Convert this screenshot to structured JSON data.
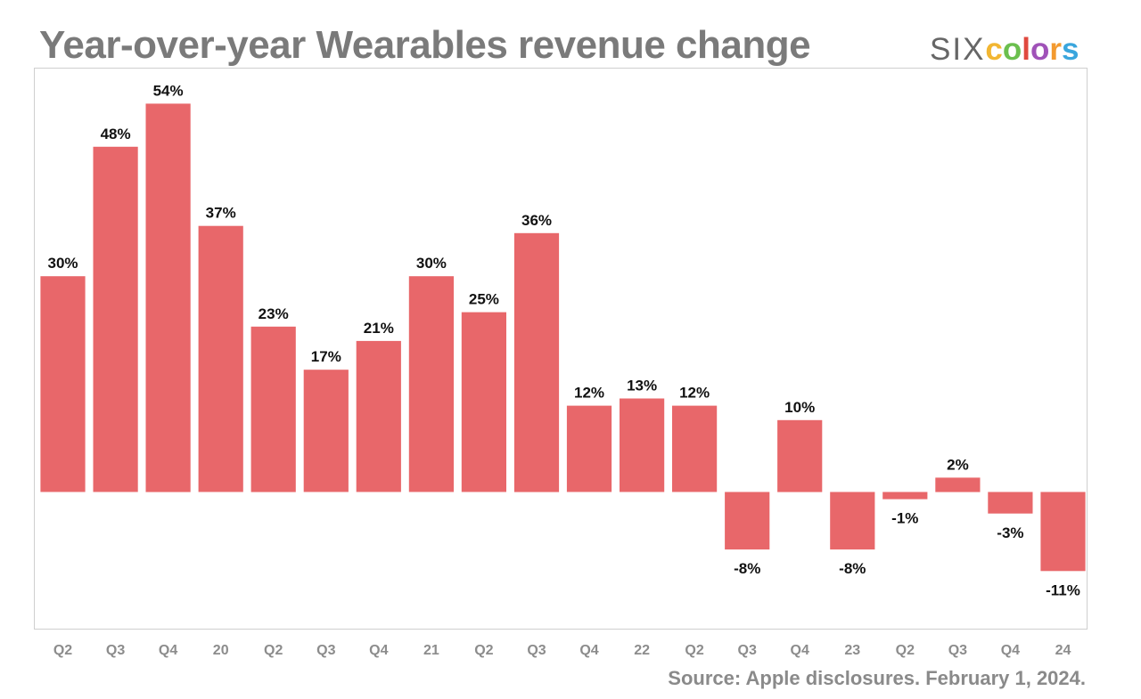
{
  "header": {
    "title": "Year-over-year Wearables revenue change",
    "logo": {
      "six": "SIX",
      "colors": [
        {
          "ch": "c",
          "color": "#f2b632"
        },
        {
          "ch": "o",
          "color": "#6bbf4e"
        },
        {
          "ch": "l",
          "color": "#e0493f"
        },
        {
          "ch": "o",
          "color": "#a052b8"
        },
        {
          "ch": "r",
          "color": "#f39a2f"
        },
        {
          "ch": "s",
          "color": "#3aa6dd"
        }
      ]
    }
  },
  "footer": {
    "source": "Source: Apple disclosures. February 1, 2024."
  },
  "chart_data": {
    "type": "bar",
    "title": "Year-over-year Wearables revenue change",
    "categories": [
      "Q2",
      "Q3",
      "Q4",
      "20",
      "Q2",
      "Q3",
      "Q4",
      "21",
      "Q2",
      "Q3",
      "Q4",
      "22",
      "Q2",
      "Q3",
      "Q4",
      "23",
      "Q2",
      "Q3",
      "Q4",
      "24"
    ],
    "values": [
      30,
      48,
      54,
      37,
      23,
      17,
      21,
      30,
      25,
      36,
      12,
      13,
      12,
      -8,
      10,
      -8,
      -1,
      2,
      -3,
      -11
    ],
    "labels": [
      "30%",
      "48%",
      "54%",
      "37%",
      "23%",
      "17%",
      "21%",
      "30%",
      "25%",
      "36%",
      "12%",
      "13%",
      "12%",
      "-8%",
      "10%",
      "-8%",
      "-1%",
      "2%",
      "-3%",
      "-11%"
    ],
    "ylim": [
      -19,
      59
    ],
    "xlabel": "",
    "ylabel": "",
    "grid": false,
    "bar_color": "#e8676a"
  }
}
